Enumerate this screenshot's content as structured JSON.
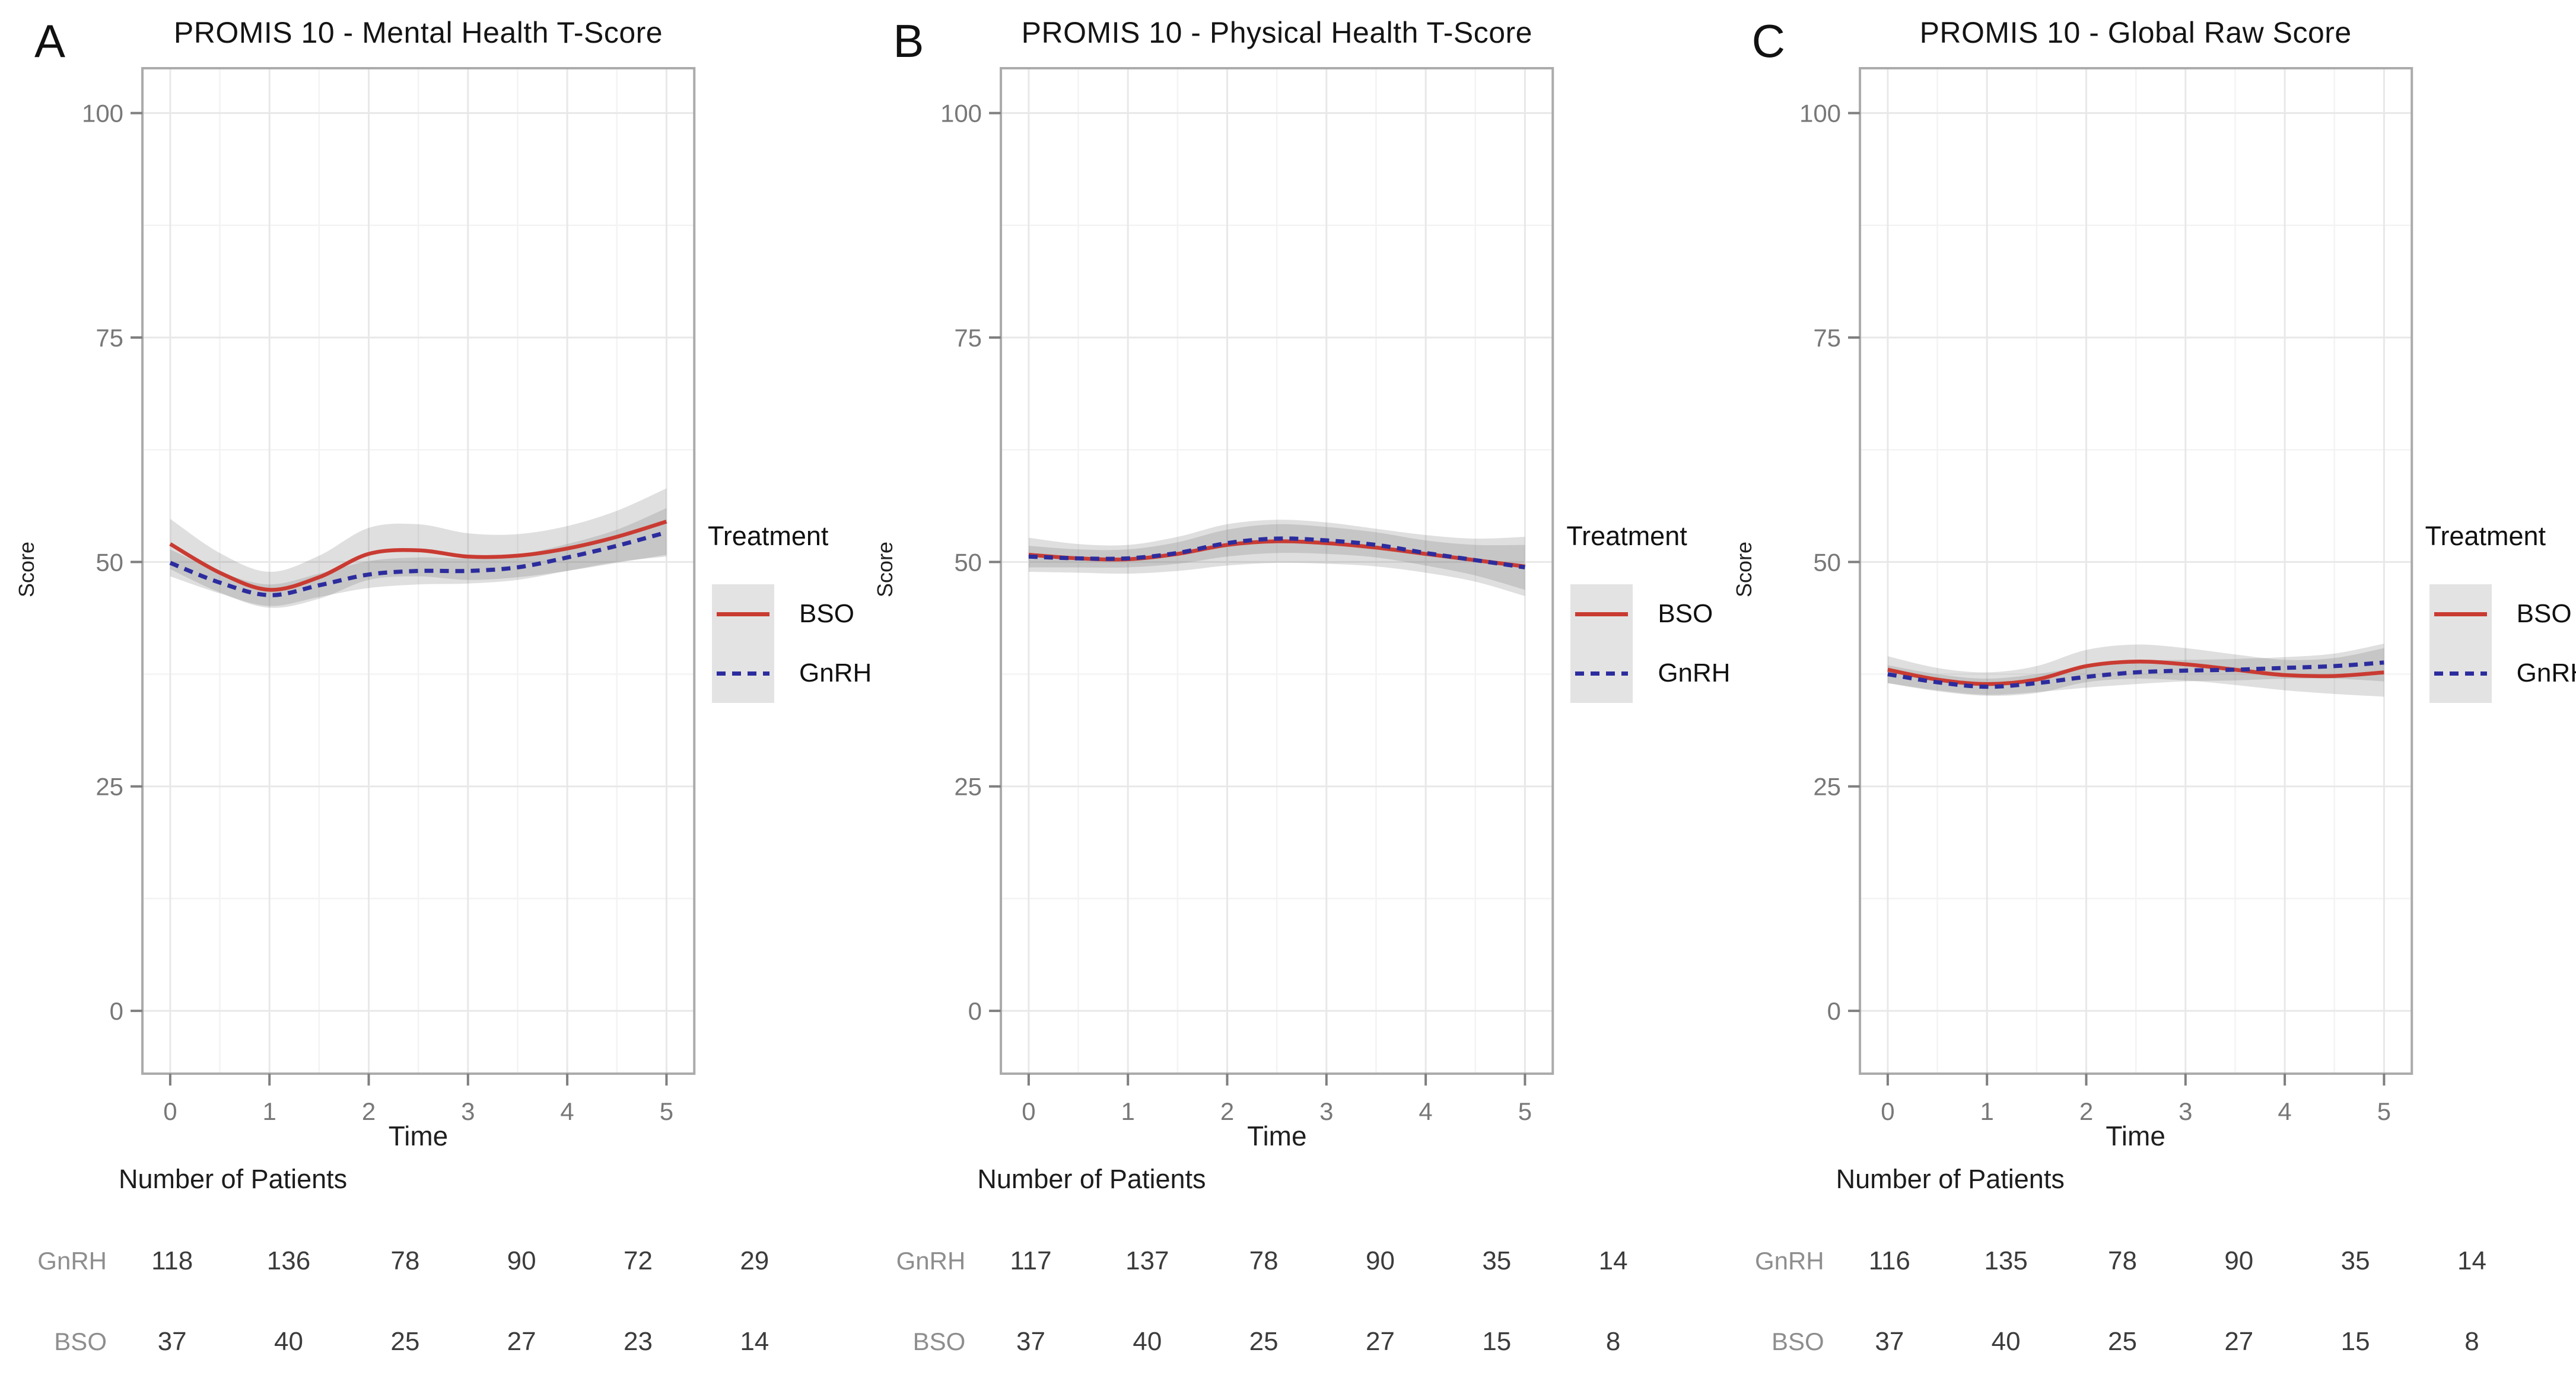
{
  "figure": {
    "background": "#ffffff",
    "colors": {
      "bso_line": "#c93b32",
      "gnrh_line": "#2c2c9e",
      "ci_ribbon": "rgba(110,110,110,0.22)",
      "grid_major": "#e8e8e8",
      "grid_minor": "#f3f3f3",
      "plot_border": "#ababab",
      "tick_mark": "#7f7f7f",
      "tick_text": "#787878",
      "legend_key_bg": "#e3e3e3"
    }
  },
  "chart_data": [
    {
      "type": "line",
      "panel_label": "A",
      "title": "PROMIS 10 - Mental Health T-Score",
      "xlabel": "Time",
      "ylabel": "Score",
      "legend_title": "Treatment",
      "legend_position": "right",
      "grid": true,
      "xlim": [
        -0.28,
        5.28
      ],
      "ylim": [
        -7,
        105
      ],
      "x_ticks": [
        0,
        1,
        2,
        3,
        4,
        5
      ],
      "y_ticks": [
        0,
        25,
        50,
        75,
        100
      ],
      "x": [
        0,
        0.5,
        1,
        1.5,
        2,
        2.5,
        3,
        3.5,
        4,
        4.5,
        5
      ],
      "series": [
        {
          "name": "BSO",
          "style": "solid",
          "y": [
            52.0,
            48.8,
            46.9,
            48.3,
            50.9,
            51.3,
            50.6,
            50.7,
            51.5,
            52.8,
            54.5
          ],
          "ci": [
            2.8,
            2.2,
            2.0,
            2.4,
            2.9,
            2.9,
            2.6,
            2.4,
            2.5,
            2.9,
            3.7
          ]
        },
        {
          "name": "GnRH",
          "style": "dashed",
          "y": [
            49.9,
            47.7,
            46.3,
            47.4,
            48.6,
            49.0,
            49.0,
            49.4,
            50.5,
            51.8,
            53.3
          ],
          "ci": [
            1.5,
            1.2,
            1.2,
            1.3,
            1.5,
            1.5,
            1.4,
            1.4,
            1.5,
            1.8,
            2.7
          ]
        }
      ],
      "n_table": {
        "heading": "Number of Patients",
        "rows": [
          {
            "label": "GnRH",
            "values": [
              118,
              136,
              78,
              90,
              72,
              29
            ]
          },
          {
            "label": "BSO",
            "values": [
              37,
              40,
              25,
              27,
              23,
              14
            ]
          }
        ]
      }
    },
    {
      "type": "line",
      "panel_label": "B",
      "title": "PROMIS 10 - Physical Health T-Score",
      "xlabel": "Time",
      "ylabel": "Score",
      "legend_title": "Treatment",
      "legend_position": "right",
      "grid": true,
      "xlim": [
        -0.28,
        5.28
      ],
      "ylim": [
        -7,
        105
      ],
      "x_ticks": [
        0,
        1,
        2,
        3,
        4,
        5
      ],
      "y_ticks": [
        0,
        25,
        50,
        75,
        100
      ],
      "x": [
        0,
        0.5,
        1,
        1.5,
        2,
        2.5,
        3,
        3.5,
        4,
        4.5,
        5
      ],
      "series": [
        {
          "name": "BSO",
          "style": "solid",
          "y": [
            50.8,
            50.4,
            50.3,
            50.9,
            51.9,
            52.3,
            52.1,
            51.6,
            50.9,
            50.2,
            49.5
          ],
          "ci": [
            1.9,
            1.6,
            1.6,
            1.9,
            2.3,
            2.4,
            2.3,
            2.1,
            2.1,
            2.4,
            3.3
          ]
        },
        {
          "name": "GnRH",
          "style": "dashed",
          "y": [
            50.6,
            50.4,
            50.4,
            51.0,
            52.1,
            52.6,
            52.4,
            51.9,
            51.0,
            50.2,
            49.4
          ],
          "ci": [
            1.2,
            1.0,
            1.0,
            1.2,
            1.5,
            1.6,
            1.5,
            1.4,
            1.4,
            1.7,
            2.5
          ]
        }
      ],
      "n_table": {
        "heading": "Number of Patients",
        "rows": [
          {
            "label": "GnRH",
            "values": [
              117,
              137,
              78,
              90,
              35,
              14
            ]
          },
          {
            "label": "BSO",
            "values": [
              37,
              40,
              25,
              27,
              15,
              8
            ]
          }
        ]
      }
    },
    {
      "type": "line",
      "panel_label": "C",
      "title": "PROMIS 10 - Global Raw Score",
      "xlabel": "Time",
      "ylabel": "Score",
      "legend_title": "Treatment",
      "legend_position": "right",
      "grid": true,
      "xlim": [
        -0.28,
        5.28
      ],
      "ylim": [
        -7,
        105
      ],
      "x_ticks": [
        0,
        1,
        2,
        3,
        4,
        5
      ],
      "y_ticks": [
        0,
        25,
        50,
        75,
        100
      ],
      "x": [
        0,
        0.5,
        1,
        1.5,
        2,
        2.5,
        3,
        3.5,
        4,
        4.5,
        5
      ],
      "series": [
        {
          "name": "BSO",
          "style": "solid",
          "y": [
            38.0,
            36.9,
            36.4,
            36.9,
            38.4,
            38.9,
            38.6,
            38.0,
            37.4,
            37.3,
            37.7
          ],
          "ci": [
            1.5,
            1.3,
            1.3,
            1.5,
            1.8,
            1.9,
            1.8,
            1.7,
            1.7,
            2.0,
            2.7
          ]
        },
        {
          "name": "GnRH",
          "style": "dashed",
          "y": [
            37.5,
            36.6,
            36.1,
            36.5,
            37.2,
            37.7,
            37.9,
            38.0,
            38.2,
            38.4,
            38.8
          ],
          "ci": [
            1.0,
            0.9,
            0.9,
            1.0,
            1.2,
            1.3,
            1.2,
            1.2,
            1.2,
            1.4,
            2.1
          ]
        }
      ],
      "n_table": {
        "heading": "Number of Patients",
        "rows": [
          {
            "label": "GnRH",
            "values": [
              116,
              135,
              78,
              90,
              35,
              14
            ]
          },
          {
            "label": "BSO",
            "values": [
              37,
              40,
              25,
              27,
              15,
              8
            ]
          }
        ]
      }
    }
  ]
}
